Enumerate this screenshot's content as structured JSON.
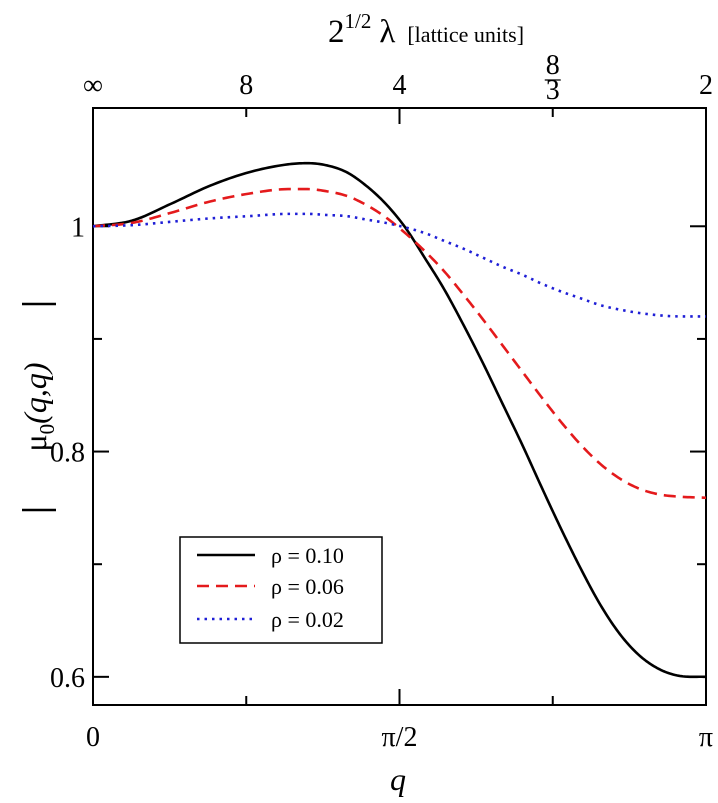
{
  "chart_data": {
    "type": "line",
    "x_axis": {
      "label": "q",
      "range": [
        0,
        3.14159265
      ],
      "ticks": [
        {
          "value": 0,
          "label": "0"
        },
        {
          "value": 1.5707963,
          "label": "π/2"
        },
        {
          "value": 3.14159265,
          "label": "π"
        }
      ],
      "minor_ticks": [
        0.7853982,
        2.3561945
      ]
    },
    "y_axis": {
      "label": "| μ0(q,q) |",
      "label_mu": "μ",
      "label_sub": "0",
      "label_args": "(q,q)",
      "range": [
        0.575,
        1.105
      ],
      "ticks": [
        {
          "value": 0.6,
          "label": "0.6"
        },
        {
          "value": 0.8,
          "label": "0.8"
        },
        {
          "value": 1.0,
          "label": "1"
        }
      ],
      "minor_ticks": [
        0.7,
        0.9
      ]
    },
    "top_axis": {
      "label": "2^(1/2) λ [lattice units]",
      "label_base": "2",
      "label_exp": "1/2",
      "label_lambda": "λ",
      "label_units": "[lattice units]",
      "ticks": [
        {
          "q": 0,
          "label": "∞"
        },
        {
          "q": 0.7853982,
          "label": "8"
        },
        {
          "q": 1.5707963,
          "label": "4"
        },
        {
          "q": 3.14159265,
          "label": "2"
        }
      ],
      "fraction_tick": {
        "q": 2.3561945,
        "numerator": "8",
        "denominator": "3"
      }
    },
    "legend": {
      "position": "bottom-left",
      "entries": [
        {
          "label": "ρ = 0.10",
          "color": "#000000",
          "style": "solid"
        },
        {
          "label": "ρ = 0.06",
          "color": "#e41a1c",
          "style": "dashed"
        },
        {
          "label": "ρ = 0.02",
          "color": "#1f1fd6",
          "style": "dotted"
        }
      ]
    },
    "series": [
      {
        "name": "ρ = 0.10",
        "color": "#000000",
        "style": "solid",
        "x": [
          0,
          0.2,
          0.4,
          0.6,
          0.8,
          1.0,
          1.1,
          1.2,
          1.3,
          1.4,
          1.5,
          1.6,
          1.7,
          1.8,
          1.9,
          2.0,
          2.1,
          2.2,
          2.3,
          2.4,
          2.5,
          2.6,
          2.7,
          2.8,
          2.9,
          3.0,
          3.14159
        ],
        "values": [
          1.0,
          1.005,
          1.02,
          1.036,
          1.048,
          1.055,
          1.056,
          1.054,
          1.048,
          1.036,
          1.02,
          0.999,
          0.972,
          0.944,
          0.912,
          0.878,
          0.842,
          0.806,
          0.768,
          0.731,
          0.696,
          0.664,
          0.638,
          0.619,
          0.607,
          0.601,
          0.6
        ]
      },
      {
        "name": "ρ = 0.06",
        "color": "#e41a1c",
        "style": "dashed",
        "x": [
          0,
          0.2,
          0.4,
          0.6,
          0.8,
          1.0,
          1.1,
          1.2,
          1.3,
          1.4,
          1.5,
          1.6,
          1.7,
          1.8,
          1.9,
          2.0,
          2.1,
          2.2,
          2.3,
          2.4,
          2.5,
          2.6,
          2.7,
          2.8,
          2.9,
          3.0,
          3.14159
        ],
        "values": [
          1.0,
          1.003,
          1.012,
          1.022,
          1.029,
          1.033,
          1.033,
          1.031,
          1.027,
          1.019,
          1.008,
          0.994,
          0.978,
          0.96,
          0.939,
          0.917,
          0.894,
          0.871,
          0.848,
          0.826,
          0.806,
          0.789,
          0.776,
          0.767,
          0.762,
          0.76,
          0.759
        ]
      },
      {
        "name": "ρ = 0.02",
        "color": "#1f1fd6",
        "style": "dotted",
        "x": [
          0,
          0.2,
          0.4,
          0.6,
          0.8,
          1.0,
          1.1,
          1.2,
          1.3,
          1.4,
          1.5,
          1.6,
          1.7,
          1.8,
          1.9,
          2.0,
          2.1,
          2.2,
          2.3,
          2.4,
          2.5,
          2.6,
          2.7,
          2.8,
          2.9,
          3.0,
          3.14159
        ],
        "values": [
          1.0,
          1.001,
          1.004,
          1.007,
          1.009,
          1.011,
          1.011,
          1.01,
          1.009,
          1.006,
          1.003,
          0.999,
          0.994,
          0.987,
          0.98,
          0.972,
          0.964,
          0.957,
          0.949,
          0.942,
          0.936,
          0.93,
          0.926,
          0.923,
          0.921,
          0.92,
          0.92
        ]
      }
    ]
  }
}
